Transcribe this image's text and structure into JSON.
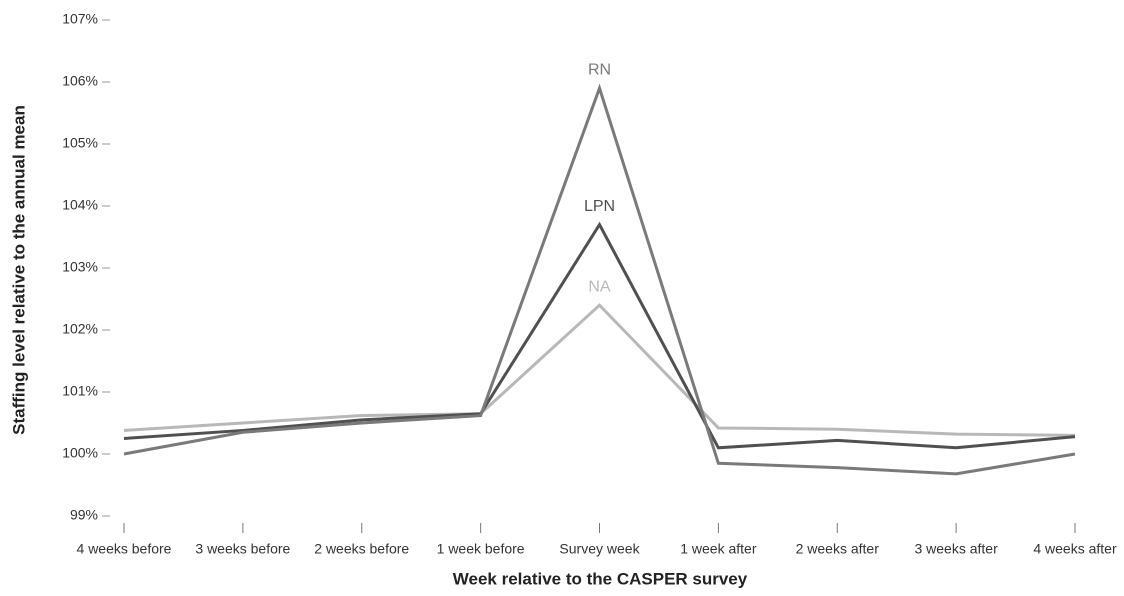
{
  "chart_data": {
    "type": "line",
    "xlabel": "Week relative to the CASPER survey",
    "ylabel": "Staffing level relative to the annual mean",
    "categories": [
      "4 weeks before",
      "3 weeks before",
      "2 weeks before",
      "1 week before",
      "Survey week",
      "1 week after",
      "2 weeks after",
      "3 weeks after",
      "4 weeks after"
    ],
    "series": [
      {
        "name": "RN",
        "color": "#7a7a7a",
        "values": [
          100.0,
          100.35,
          100.5,
          100.62,
          105.9,
          99.85,
          99.78,
          99.68,
          100.0
        ]
      },
      {
        "name": "LPN",
        "color": "#505050",
        "values": [
          100.25,
          100.38,
          100.55,
          100.65,
          103.7,
          100.1,
          100.22,
          100.1,
          100.28
        ]
      },
      {
        "name": "NA",
        "color": "#b8b8b8",
        "values": [
          100.38,
          100.5,
          100.62,
          100.65,
          102.4,
          100.42,
          100.4,
          100.32,
          100.3
        ]
      }
    ],
    "ylim": [
      99,
      107
    ],
    "yticks": [
      {
        "value": 99,
        "label": "99%"
      },
      {
        "value": 100,
        "label": "100%"
      },
      {
        "value": 101,
        "label": "101%"
      },
      {
        "value": 102,
        "label": "102%"
      },
      {
        "value": 103,
        "label": "103%"
      },
      {
        "value": 104,
        "label": "104%"
      },
      {
        "value": 105,
        "label": "105%"
      },
      {
        "value": 106,
        "label": "106%"
      },
      {
        "value": 107,
        "label": "107%"
      }
    ]
  }
}
